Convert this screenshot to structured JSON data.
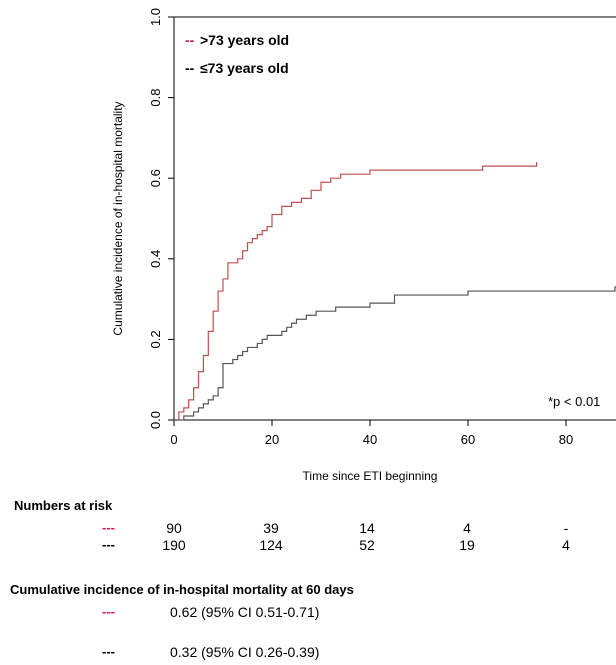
{
  "chart_data": {
    "type": "line",
    "xlabel": "Time since ETI beginning",
    "ylabel": "Cumulative incidence of in-hospital mortality",
    "xlim": [
      0,
      95
    ],
    "ylim": [
      0,
      1.0
    ],
    "x_ticks": [
      "0",
      "20",
      "40",
      "60",
      "80"
    ],
    "y_ticks": [
      "0.0",
      "0.2",
      "0.4",
      "0.6",
      "0.8",
      "1.0"
    ],
    "legend_placement": "top-left",
    "annotation": "*p < 0.01",
    "series": [
      {
        "name": ">73 years old",
        "color": "#c0504d",
        "points": [
          [
            0,
            0
          ],
          [
            1,
            0.02
          ],
          [
            2,
            0.03
          ],
          [
            3,
            0.05
          ],
          [
            4,
            0.08
          ],
          [
            5,
            0.12
          ],
          [
            6,
            0.16
          ],
          [
            7,
            0.22
          ],
          [
            8,
            0.27
          ],
          [
            9,
            0.32
          ],
          [
            10,
            0.35
          ],
          [
            11,
            0.39
          ],
          [
            13,
            0.4
          ],
          [
            14,
            0.42
          ],
          [
            15,
            0.44
          ],
          [
            16,
            0.45
          ],
          [
            17,
            0.46
          ],
          [
            18,
            0.47
          ],
          [
            19,
            0.48
          ],
          [
            20,
            0.51
          ],
          [
            22,
            0.53
          ],
          [
            24,
            0.54
          ],
          [
            26,
            0.55
          ],
          [
            28,
            0.57
          ],
          [
            30,
            0.59
          ],
          [
            32,
            0.6
          ],
          [
            34,
            0.61
          ],
          [
            36,
            0.61
          ],
          [
            40,
            0.62
          ],
          [
            50,
            0.62
          ],
          [
            63,
            0.63
          ],
          [
            70,
            0.63
          ],
          [
            74,
            0.64
          ]
        ]
      },
      {
        "name": "≤73 years old",
        "color": "#555555",
        "points": [
          [
            0,
            0
          ],
          [
            2,
            0.01
          ],
          [
            3,
            0.01
          ],
          [
            4,
            0.02
          ],
          [
            5,
            0.03
          ],
          [
            6,
            0.04
          ],
          [
            7,
            0.05
          ],
          [
            8,
            0.06
          ],
          [
            9,
            0.08
          ],
          [
            10,
            0.14
          ],
          [
            12,
            0.15
          ],
          [
            13,
            0.16
          ],
          [
            14,
            0.17
          ],
          [
            15,
            0.18
          ],
          [
            17,
            0.19
          ],
          [
            18,
            0.2
          ],
          [
            19,
            0.21
          ],
          [
            22,
            0.22
          ],
          [
            23,
            0.23
          ],
          [
            24,
            0.24
          ],
          [
            25,
            0.25
          ],
          [
            27,
            0.26
          ],
          [
            29,
            0.27
          ],
          [
            31,
            0.27
          ],
          [
            33,
            0.28
          ],
          [
            36,
            0.28
          ],
          [
            40,
            0.29
          ],
          [
            45,
            0.31
          ],
          [
            55,
            0.31
          ],
          [
            60,
            0.32
          ],
          [
            80,
            0.32
          ],
          [
            90,
            0.33
          ],
          [
            95,
            0.33
          ]
        ]
      }
    ]
  },
  "risk_table": {
    "title": "Numbers at risk",
    "rows": [
      {
        "dash": "---",
        "color": "#e0115f",
        "values": [
          "90",
          "39",
          "14",
          "4",
          "-"
        ]
      },
      {
        "dash": "---",
        "color": "#000000",
        "values": [
          "190",
          "124",
          "52",
          "19",
          "4"
        ]
      }
    ]
  },
  "cumulative": {
    "title": "Cumulative incidence of in-hospital mortality at 60 days",
    "rows": [
      {
        "dash": "---",
        "color": "#e0115f",
        "text": "0.62 (95% CI 0.51-0.71)"
      },
      {
        "dash": "---",
        "color": "#000000",
        "text": "0.32 (95% CI 0.26-0.39)"
      }
    ]
  }
}
